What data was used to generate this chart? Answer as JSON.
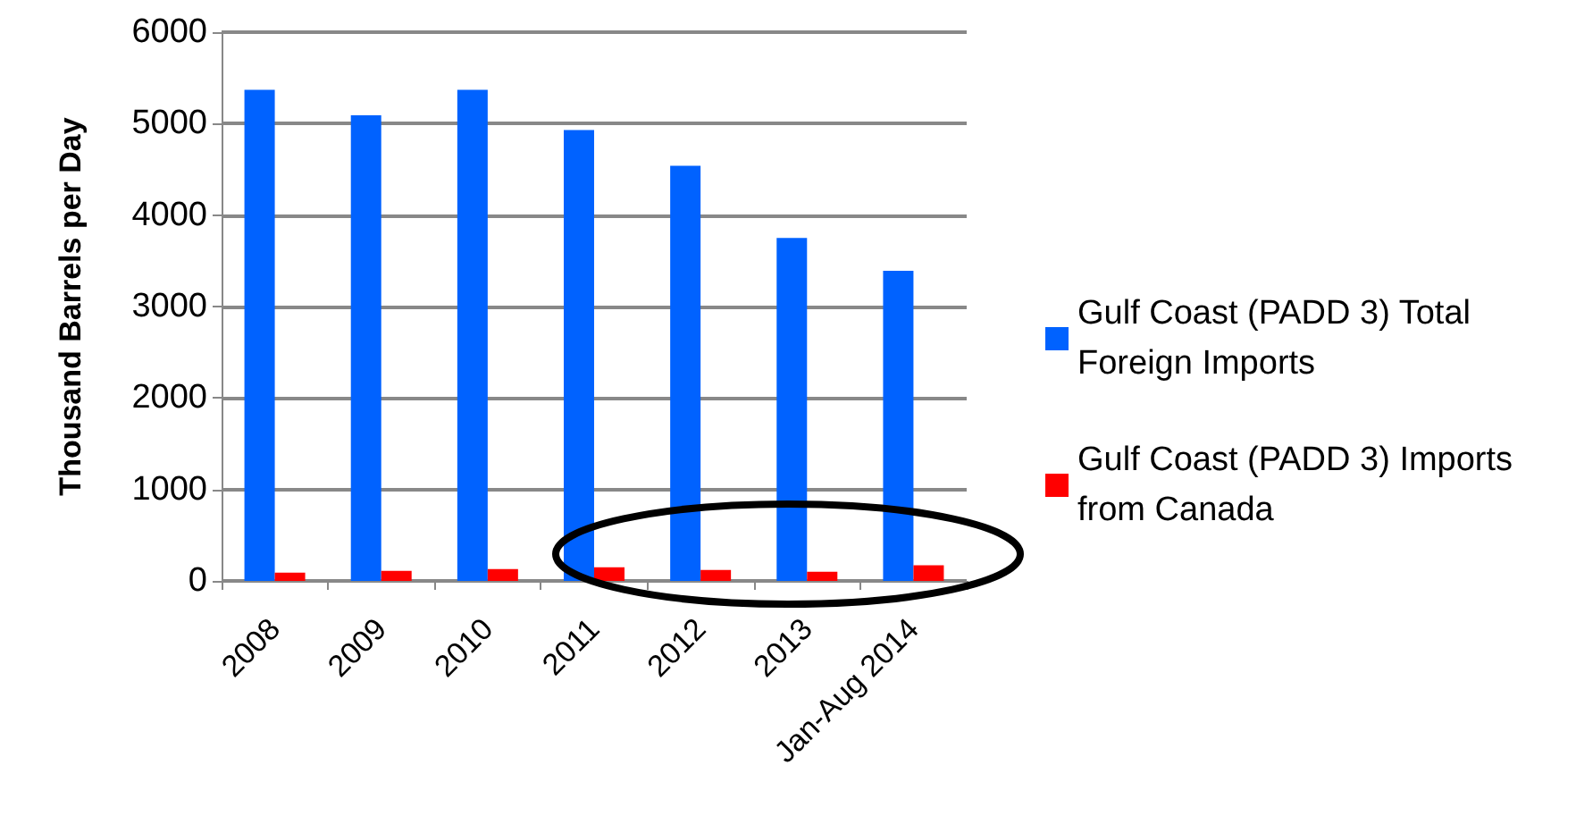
{
  "chart_data": {
    "type": "bar",
    "ylabel": "Thousand Barrels per Day",
    "categories": [
      "2008",
      "2009",
      "2010",
      "2011",
      "2012",
      "2013",
      "Jan-Aug 2014"
    ],
    "series": [
      {
        "name": "Gulf Coast (PADD 3) Total Foreign Imports",
        "color": "#0062ff",
        "values": [
          5370,
          5090,
          5370,
          4930,
          4540,
          3750,
          3390
        ]
      },
      {
        "name": "Gulf Coast (PADD 3) Imports from Canada",
        "color": "#ff0000",
        "values": [
          90,
          110,
          130,
          150,
          120,
          100,
          170
        ]
      }
    ],
    "ylim": [
      0,
      6000
    ],
    "yticks": [
      0,
      1000,
      2000,
      3000,
      4000,
      5000,
      6000
    ],
    "grid": "y",
    "legend": "right"
  }
}
